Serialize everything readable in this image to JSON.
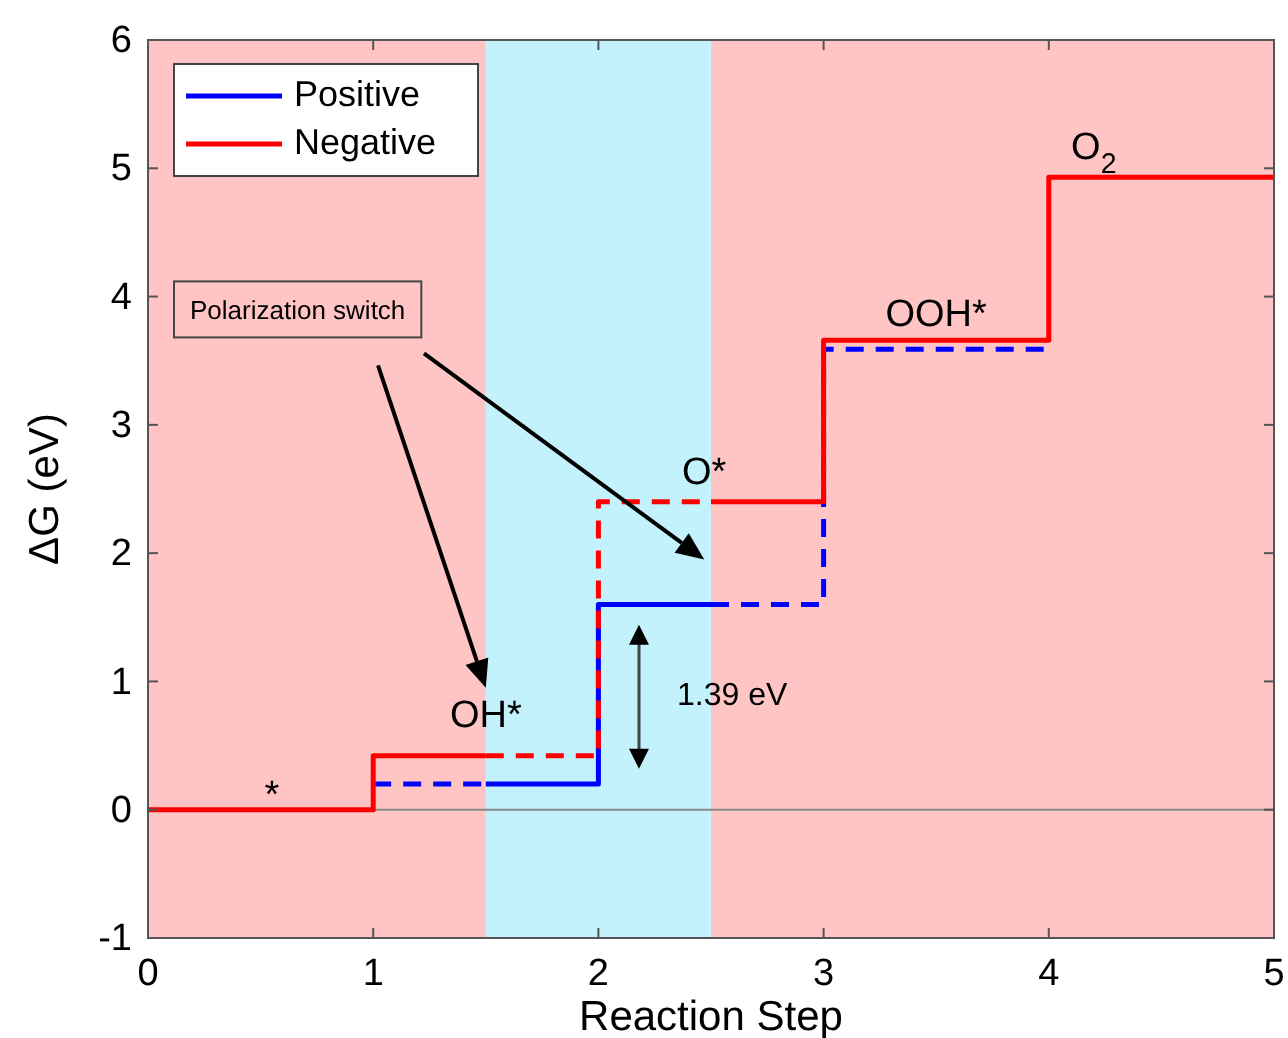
{
  "chart_data": {
    "type": "step",
    "xlabel": "Reaction Step",
    "ylabel": "ΔG (eV)",
    "xlim": [
      0,
      5
    ],
    "xticks": [
      0,
      1,
      2,
      3,
      4,
      5
    ],
    "ylim": [
      -1,
      6
    ],
    "yticks": [
      -1,
      0,
      1,
      2,
      3,
      4,
      5,
      6
    ],
    "grid": false,
    "legend": "top left",
    "series": [
      {
        "name": "Positive",
        "color": "#0000ff",
        "line_style": "solid",
        "x": [
          1.5,
          2,
          2.5
        ],
        "values": [
          0.2,
          1.6,
          1.6
        ]
      },
      {
        "color": "#0000ff",
        "line_style": "dashed",
        "x": [
          1,
          1.5
        ],
        "values": [
          0.2,
          0.2
        ]
      },
      {
        "color": "#0000ff",
        "line_style": "dashed",
        "x": [
          2.5,
          3,
          4
        ],
        "values": [
          1.6,
          3.59,
          3.59
        ]
      },
      {
        "color": "#ff0000",
        "line_style": "dashed",
        "x": [
          1.5,
          2,
          2.5
        ],
        "values": [
          0.42,
          2.4,
          2.4
        ]
      },
      {
        "name": "Negative",
        "color": "#ff0000",
        "line_style": "solid",
        "x": [
          0,
          1,
          1.5
        ],
        "values": [
          0,
          0.42,
          0.42
        ]
      },
      {
        "color": "#ff0000",
        "line_style": "solid",
        "x": [
          2.5,
          3,
          4,
          5
        ],
        "values": [
          2.4,
          3.66,
          4.93,
          4.93
        ]
      }
    ],
    "bands": [
      {
        "axis": "x",
        "from": 0,
        "to": 1.5,
        "color": "#ffc4c4"
      },
      {
        "axis": "x",
        "from": 1.5,
        "to": 2.5,
        "color": "#c4f2fc"
      },
      {
        "axis": "x",
        "from": 2.5,
        "to": 5,
        "color": "#ffc4c4"
      }
    ],
    "ref_lines": [
      {
        "axis": "y",
        "value": 0,
        "color": "#888888"
      }
    ],
    "annotations": [
      "*",
      "OH*",
      "O*",
      "OOH*",
      "O$_{2}$",
      "1.39 eV",
      "Polarization switch"
    ]
  }
}
